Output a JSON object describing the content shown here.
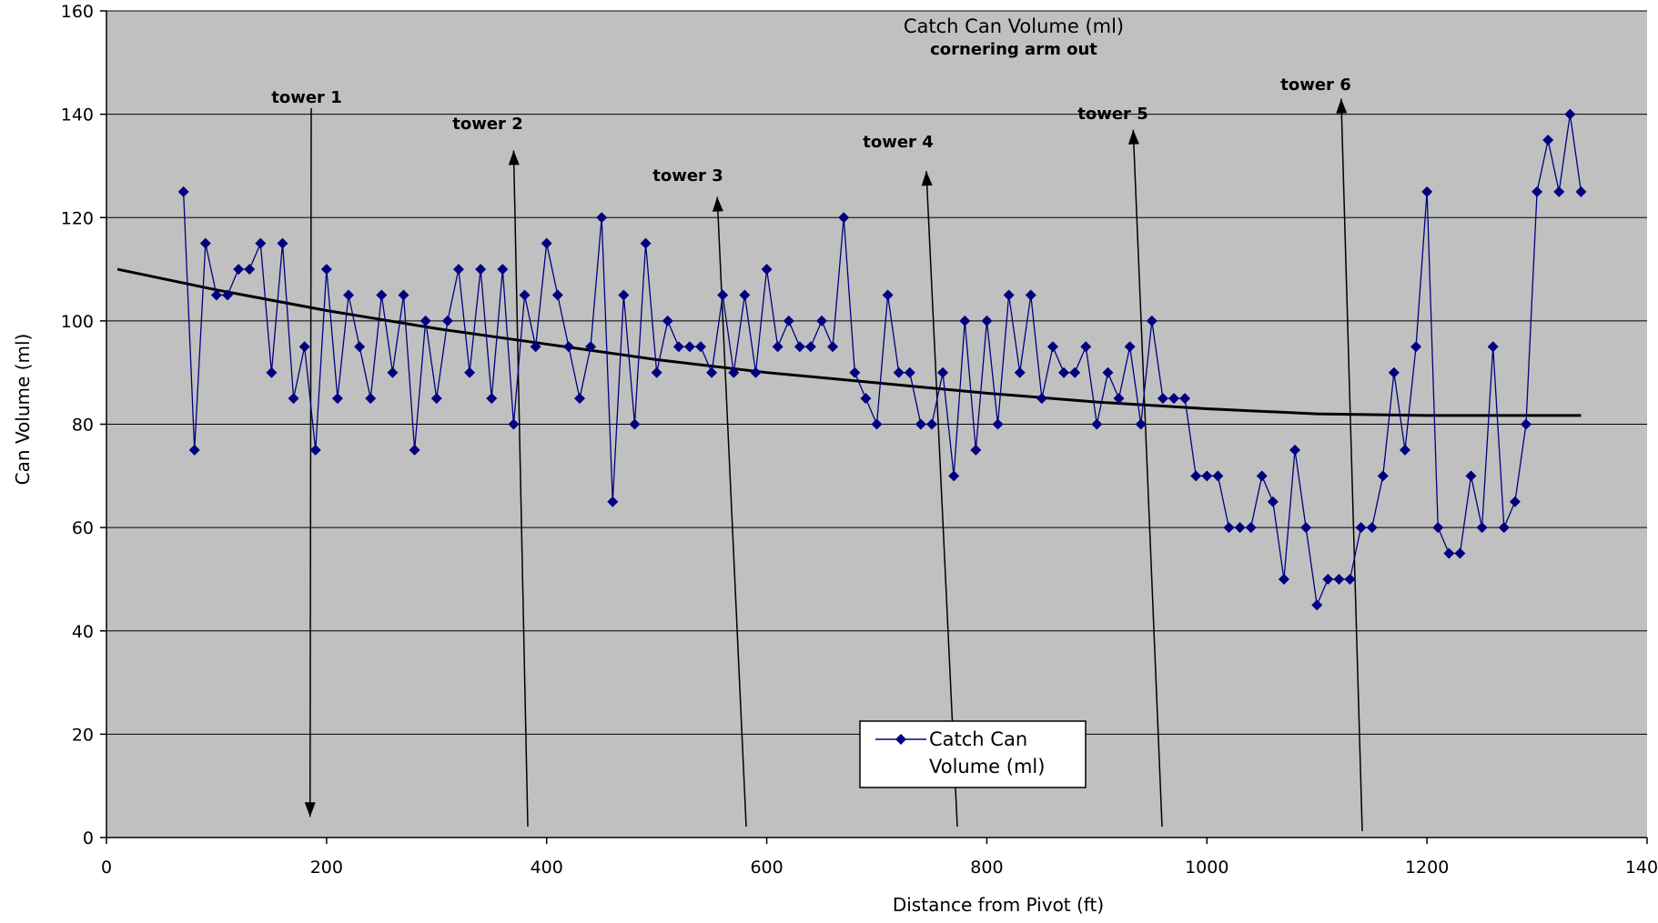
{
  "chart_data": {
    "type": "line",
    "title": "Catch Can Volume (ml)",
    "subtitle": "cornering arm out",
    "xlabel": "Distance from Pivot (ft)",
    "ylabel": "Can Volume (ml)",
    "xlim": [
      0,
      1400
    ],
    "ylim": [
      0,
      160
    ],
    "xticks": [
      0,
      200,
      400,
      600,
      800,
      1000,
      1200,
      1400
    ],
    "yticks": [
      0,
      20,
      40,
      60,
      80,
      100,
      120,
      140,
      160
    ],
    "grid": "horizontal",
    "background": "#c0c0c0",
    "legend": {
      "position": "bottom-center",
      "entries": [
        "Catch Can Volume (ml)"
      ]
    },
    "series": [
      {
        "name": "Catch Can Volume (ml)",
        "color": "#000080",
        "marker": "diamond",
        "x": [
          70,
          80,
          90,
          100,
          110,
          120,
          130,
          140,
          150,
          160,
          170,
          180,
          190,
          200,
          210,
          220,
          230,
          240,
          250,
          260,
          270,
          280,
          290,
          300,
          310,
          320,
          330,
          340,
          350,
          360,
          370,
          380,
          390,
          400,
          410,
          420,
          430,
          440,
          450,
          460,
          470,
          480,
          490,
          500,
          510,
          520,
          530,
          540,
          550,
          560,
          570,
          580,
          590,
          600,
          610,
          620,
          630,
          640,
          650,
          660,
          670,
          680,
          690,
          700,
          710,
          720,
          730,
          740,
          750,
          760,
          770,
          780,
          790,
          800,
          810,
          820,
          830,
          840,
          850,
          860,
          870,
          880,
          890,
          900,
          910,
          920,
          930,
          940,
          950,
          960,
          970,
          980,
          990,
          1000,
          1010,
          1020,
          1030,
          1040,
          1050,
          1060,
          1070,
          1080,
          1090,
          1100,
          1110,
          1120,
          1130,
          1140,
          1150,
          1160,
          1170,
          1180,
          1190,
          1200,
          1210,
          1220,
          1230,
          1240,
          1250,
          1260,
          1270,
          1280,
          1290,
          1300,
          1310,
          1320,
          1330,
          1340
        ],
        "values": [
          125,
          75,
          115,
          105,
          105,
          110,
          110,
          115,
          90,
          115,
          85,
          95,
          75,
          110,
          85,
          105,
          95,
          85,
          105,
          90,
          105,
          75,
          100,
          85,
          100,
          110,
          90,
          110,
          85,
          110,
          80,
          105,
          95,
          115,
          105,
          95,
          85,
          95,
          120,
          65,
          105,
          80,
          115,
          90,
          100,
          95,
          95,
          95,
          90,
          105,
          90,
          105,
          90,
          110,
          95,
          100,
          95,
          95,
          100,
          95,
          120,
          90,
          85,
          80,
          105,
          90,
          90,
          80,
          80,
          90,
          70,
          100,
          75,
          100,
          80,
          105,
          90,
          105,
          85,
          95,
          90,
          90,
          95,
          80,
          90,
          85,
          95,
          80,
          100,
          85,
          85,
          85,
          70,
          70,
          70,
          60,
          60,
          60,
          70,
          65,
          50,
          75,
          60,
          45,
          50,
          50,
          50,
          60,
          60,
          70,
          90,
          75,
          95,
          125,
          60,
          55,
          55,
          70,
          60,
          95,
          60,
          65,
          80,
          125,
          135,
          125,
          140,
          125
        ]
      },
      {
        "name": "",
        "type": "trendline",
        "color": "#000000",
        "x": [
          10,
          100,
          200,
          300,
          400,
          500,
          600,
          700,
          800,
          900,
          1000,
          1100,
          1200,
          1340
        ],
        "values": [
          110,
          106,
          102,
          98.5,
          95.5,
          92.5,
          90,
          88,
          86,
          84.3,
          83,
          82,
          81.7,
          81.7
        ]
      }
    ],
    "annotations": [
      {
        "label": "tower 1",
        "tip": [
          185,
          4
        ]
      },
      {
        "label": "tower 2",
        "tip": [
          370,
          133
        ]
      },
      {
        "label": "tower 3",
        "tip": [
          555,
          124
        ]
      },
      {
        "label": "tower 4",
        "tip": [
          745,
          129
        ]
      },
      {
        "label": "tower 5",
        "tip": [
          933,
          137
        ]
      },
      {
        "label": "tower 6",
        "tip": [
          1122,
          143
        ]
      }
    ]
  }
}
